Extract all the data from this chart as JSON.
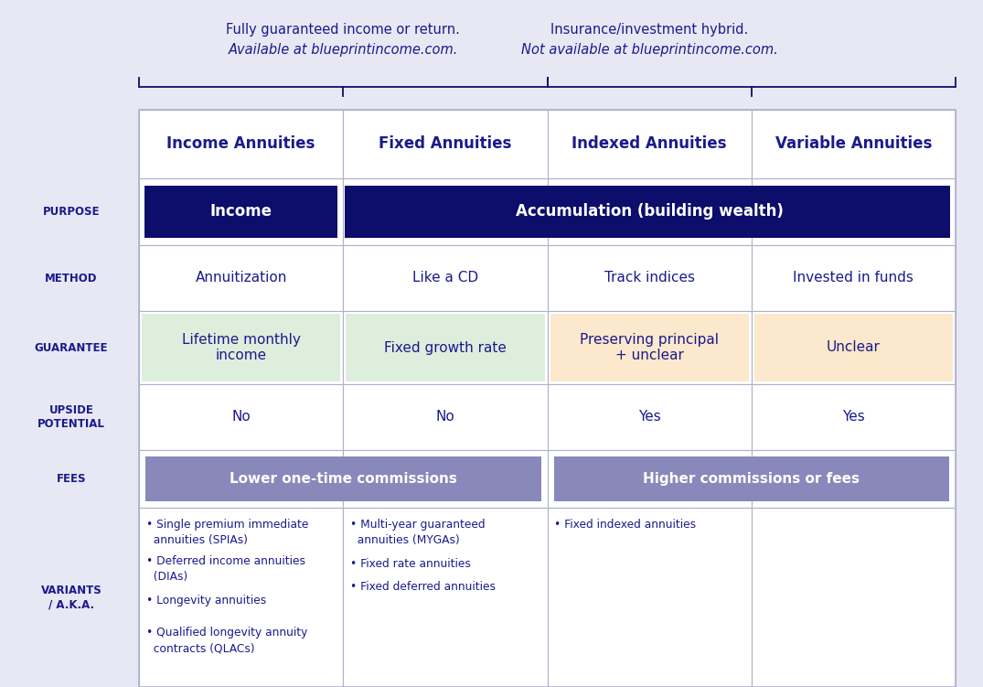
{
  "bg_color": "#e8e8f4",
  "text_color": "#1a1a8c",
  "dark_navy": "#0d0d6b",
  "white": "#ffffff",
  "green_bg": "#deeedd",
  "peach_bg": "#fce8cc",
  "purple_bg": "#8888bb",
  "border_color": "#b0b0cc",
  "col_headers": [
    "Income Annuities",
    "Fixed Annuities",
    "Indexed Annuities",
    "Variable Annuities"
  ],
  "method_row": [
    "Annuitization",
    "Like a CD",
    "Track indices",
    "Invested in funds"
  ],
  "guarantee_row": [
    "Lifetime monthly\nincome",
    "Fixed growth rate",
    "Preserving principal\n+ unclear",
    "Unclear"
  ],
  "upside_row": [
    "No",
    "No",
    "Yes",
    "Yes"
  ],
  "fees_left": "Lower one-time commissions",
  "fees_right": "Higher commissions or fees",
  "variants_col0": [
    "• Single premium immediate\n  annuities (SPIAs)",
    "• Deferred income annuities\n  (DIAs)",
    "• Longevity annuities",
    "• Qualified longevity annuity\n  contracts (QLACs)"
  ],
  "variants_col1": [
    "• Multi-year guaranteed\n  annuities (MYGAs)",
    "• Fixed rate annuities",
    "• Fixed deferred annuities"
  ],
  "variants_col2": [
    "• Fixed indexed annuities"
  ],
  "top_left_line1": "Fully guaranteed income or return.",
  "top_left_line2": "Available at blueprintincome.com.",
  "top_right_line1": "Insurance/investment hybrid.",
  "top_right_line2": "Not available at blueprintincome.com."
}
